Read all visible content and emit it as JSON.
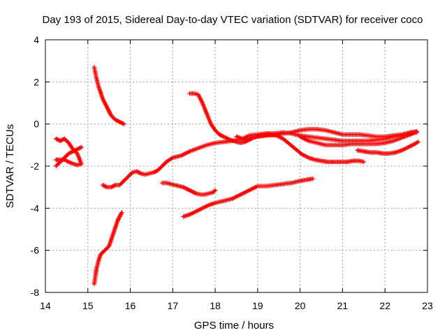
{
  "chart_data": {
    "type": "scatter",
    "title": "Day 193 of 2015, Sidereal Day-to-day VTEC variation (SDTVAR) for receiver coco",
    "xlabel": "GPS time / hours",
    "ylabel": "SDTVAR / TECUs",
    "xlim": [
      14,
      23
    ],
    "ylim": [
      -8,
      4
    ],
    "xticks": [
      "14",
      "15",
      "16",
      "17",
      "18",
      "19",
      "20",
      "21",
      "22",
      "23"
    ],
    "yticks": [
      "4",
      "2",
      "0",
      "-2",
      "-4",
      "-6",
      "-8"
    ],
    "grid": true,
    "marker": "plus",
    "color": "#ff0000",
    "series": [
      {
        "values": [
          [
            14.25,
            -0.7
          ],
          [
            14.35,
            -0.8
          ],
          [
            14.45,
            -0.7
          ],
          [
            14.55,
            -0.9
          ],
          [
            14.65,
            -1.2
          ],
          [
            14.75,
            -1.4
          ],
          [
            14.85,
            -1.9
          ],
          [
            14.75,
            -1.95
          ],
          [
            14.6,
            -1.85
          ],
          [
            14.45,
            -1.7
          ],
          [
            14.3,
            -1.7
          ],
          [
            14.25,
            -1.7
          ]
        ]
      },
      {
        "values": [
          [
            14.25,
            -2.0
          ],
          [
            14.35,
            -1.8
          ],
          [
            14.45,
            -1.6
          ],
          [
            14.55,
            -1.4
          ],
          [
            14.65,
            -1.3
          ],
          [
            14.75,
            -1.2
          ],
          [
            14.85,
            -1.1
          ]
        ]
      },
      {
        "values": [
          [
            15.15,
            2.7
          ],
          [
            15.2,
            2.2
          ],
          [
            15.25,
            1.8
          ],
          [
            15.3,
            1.5
          ],
          [
            15.35,
            1.2
          ],
          [
            15.4,
            1.0
          ],
          [
            15.45,
            0.8
          ],
          [
            15.5,
            0.6
          ],
          [
            15.55,
            0.4
          ],
          [
            15.65,
            0.2
          ],
          [
            15.75,
            0.1
          ],
          [
            15.85,
            0.0
          ]
        ]
      },
      {
        "values": [
          [
            15.15,
            -7.6
          ],
          [
            15.18,
            -7.2
          ],
          [
            15.2,
            -6.9
          ],
          [
            15.25,
            -6.5
          ],
          [
            15.3,
            -6.2
          ],
          [
            15.4,
            -6.0
          ],
          [
            15.5,
            -5.8
          ],
          [
            15.55,
            -5.5
          ],
          [
            15.6,
            -5.2
          ],
          [
            15.65,
            -4.9
          ],
          [
            15.7,
            -4.6
          ],
          [
            15.75,
            -4.4
          ],
          [
            15.8,
            -4.2
          ]
        ]
      },
      {
        "values": [
          [
            15.35,
            -2.9
          ],
          [
            15.45,
            -3.0
          ],
          [
            15.55,
            -3.0
          ],
          [
            15.65,
            -2.9
          ],
          [
            15.75,
            -2.9
          ],
          [
            15.85,
            -2.7
          ],
          [
            15.95,
            -2.5
          ],
          [
            16.05,
            -2.3
          ],
          [
            16.15,
            -2.25
          ],
          [
            16.25,
            -2.35
          ],
          [
            16.35,
            -2.4
          ],
          [
            16.45,
            -2.35
          ],
          [
            16.55,
            -2.3
          ],
          [
            16.65,
            -2.2
          ],
          [
            16.75,
            -2.0
          ],
          [
            16.85,
            -1.8
          ],
          [
            17.0,
            -1.6
          ],
          [
            17.2,
            -1.5
          ],
          [
            17.4,
            -1.3
          ],
          [
            17.6,
            -1.15
          ],
          [
            17.8,
            -1.0
          ],
          [
            18.0,
            -0.9
          ],
          [
            18.2,
            -0.85
          ],
          [
            18.4,
            -0.8
          ],
          [
            18.6,
            -0.75
          ],
          [
            18.8,
            -0.7
          ],
          [
            19.0,
            -0.6
          ],
          [
            19.2,
            -0.55
          ],
          [
            19.4,
            -0.5
          ],
          [
            19.6,
            -0.45
          ],
          [
            19.8,
            -0.4
          ],
          [
            20.0,
            -0.3
          ],
          [
            20.2,
            -0.25
          ],
          [
            20.4,
            -0.25
          ],
          [
            20.6,
            -0.3
          ],
          [
            20.8,
            -0.4
          ],
          [
            21.0,
            -0.5
          ],
          [
            21.2,
            -0.5
          ],
          [
            21.4,
            -0.5
          ],
          [
            21.6,
            -0.55
          ],
          [
            21.8,
            -0.6
          ],
          [
            22.0,
            -0.6
          ],
          [
            22.2,
            -0.55
          ],
          [
            22.4,
            -0.5
          ],
          [
            22.6,
            -0.4
          ],
          [
            22.75,
            -0.35
          ]
        ]
      },
      {
        "values": [
          [
            17.4,
            1.45
          ],
          [
            17.5,
            1.45
          ],
          [
            17.6,
            1.4
          ],
          [
            17.7,
            1.0
          ],
          [
            17.8,
            0.5
          ],
          [
            17.9,
            0.0
          ],
          [
            18.0,
            -0.3
          ],
          [
            18.1,
            -0.5
          ],
          [
            18.2,
            -0.6
          ],
          [
            18.35,
            -0.75
          ],
          [
            18.5,
            -0.85
          ],
          [
            18.6,
            -0.9
          ],
          [
            18.7,
            -0.85
          ],
          [
            18.8,
            -0.75
          ],
          [
            18.9,
            -0.65
          ],
          [
            19.05,
            -0.55
          ],
          [
            19.25,
            -0.5
          ],
          [
            19.45,
            -0.55
          ],
          [
            19.6,
            -0.7
          ],
          [
            19.75,
            -0.95
          ],
          [
            19.9,
            -1.2
          ],
          [
            20.05,
            -1.45
          ],
          [
            20.2,
            -1.6
          ],
          [
            20.35,
            -1.7
          ],
          [
            20.5,
            -1.75
          ],
          [
            20.65,
            -1.8
          ],
          [
            20.8,
            -1.8
          ],
          [
            20.95,
            -1.8
          ],
          [
            21.1,
            -1.8
          ],
          [
            21.25,
            -1.75
          ],
          [
            21.4,
            -1.75
          ],
          [
            21.5,
            -1.8
          ]
        ]
      },
      {
        "values": [
          [
            16.75,
            -2.8
          ],
          [
            16.85,
            -2.8
          ],
          [
            16.95,
            -2.85
          ],
          [
            17.05,
            -2.9
          ],
          [
            17.15,
            -2.95
          ],
          [
            17.25,
            -3.0
          ],
          [
            17.35,
            -3.1
          ],
          [
            17.45,
            -3.2
          ],
          [
            17.55,
            -3.3
          ],
          [
            17.65,
            -3.35
          ],
          [
            17.75,
            -3.35
          ],
          [
            17.85,
            -3.3
          ],
          [
            17.95,
            -3.25
          ],
          [
            18.0,
            -3.15
          ]
        ]
      },
      {
        "values": [
          [
            17.25,
            -4.4
          ],
          [
            17.4,
            -4.3
          ],
          [
            17.55,
            -4.15
          ],
          [
            17.7,
            -4.0
          ],
          [
            17.85,
            -3.85
          ],
          [
            18.0,
            -3.75
          ],
          [
            18.2,
            -3.65
          ],
          [
            18.4,
            -3.55
          ],
          [
            18.6,
            -3.35
          ],
          [
            18.8,
            -3.15
          ],
          [
            19.0,
            -2.95
          ],
          [
            19.2,
            -2.95
          ],
          [
            19.4,
            -2.9
          ],
          [
            19.6,
            -2.85
          ],
          [
            19.8,
            -2.8
          ],
          [
            20.0,
            -2.7
          ],
          [
            20.15,
            -2.65
          ],
          [
            20.3,
            -2.6
          ]
        ]
      },
      {
        "values": [
          [
            18.5,
            -0.6
          ],
          [
            18.65,
            -0.7
          ],
          [
            18.8,
            -0.55
          ],
          [
            19.0,
            -0.5
          ],
          [
            19.2,
            -0.45
          ],
          [
            19.4,
            -0.45
          ],
          [
            19.6,
            -0.4
          ],
          [
            19.8,
            -0.45
          ],
          [
            20.0,
            -0.55
          ],
          [
            20.2,
            -0.6
          ],
          [
            20.4,
            -0.65
          ],
          [
            20.6,
            -0.7
          ],
          [
            20.8,
            -0.75
          ],
          [
            21.0,
            -0.8
          ],
          [
            21.2,
            -0.8
          ],
          [
            21.4,
            -0.8
          ],
          [
            21.6,
            -0.8
          ],
          [
            21.8,
            -0.75
          ],
          [
            22.0,
            -0.7
          ],
          [
            22.2,
            -0.6
          ],
          [
            22.4,
            -0.55
          ],
          [
            22.6,
            -0.45
          ],
          [
            22.75,
            -0.4
          ]
        ]
      },
      {
        "values": [
          [
            20.0,
            -0.6
          ],
          [
            20.2,
            -0.8
          ],
          [
            20.4,
            -0.9
          ],
          [
            20.6,
            -1.0
          ],
          [
            20.8,
            -1.0
          ],
          [
            21.0,
            -1.0
          ],
          [
            21.2,
            -0.95
          ],
          [
            21.4,
            -0.95
          ],
          [
            21.6,
            -0.95
          ],
          [
            21.8,
            -0.95
          ],
          [
            22.0,
            -0.9
          ],
          [
            22.2,
            -0.8
          ],
          [
            22.4,
            -0.65
          ],
          [
            22.6,
            -0.5
          ],
          [
            22.75,
            -0.35
          ]
        ]
      },
      {
        "values": [
          [
            21.35,
            -1.25
          ],
          [
            21.5,
            -1.3
          ],
          [
            21.65,
            -1.35
          ],
          [
            21.8,
            -1.35
          ],
          [
            21.95,
            -1.4
          ],
          [
            22.1,
            -1.4
          ],
          [
            22.25,
            -1.35
          ],
          [
            22.4,
            -1.25
          ],
          [
            22.55,
            -1.1
          ],
          [
            22.7,
            -0.95
          ],
          [
            22.78,
            -0.85
          ]
        ]
      }
    ]
  }
}
